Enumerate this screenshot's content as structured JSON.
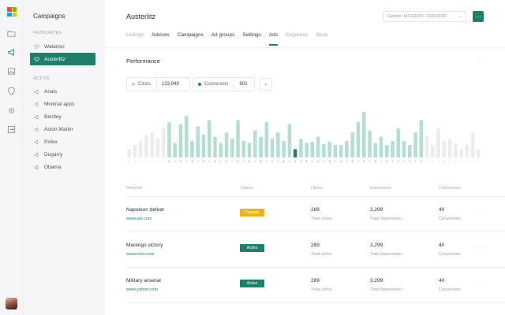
{
  "colors": {
    "accent": "#1f7f6b",
    "bar_light": "#b5ded3",
    "bar_faded": "#ececec",
    "bar_highlight": "#1f7f6b",
    "paused": "#f2b01e",
    "active": "#1f7f6b"
  },
  "sidebar": {
    "logo": "microsoft-logo",
    "icons": [
      "folder-icon",
      "megaphone-icon",
      "image-icon",
      "shield-icon",
      "gear-icon",
      "export-icon"
    ]
  },
  "campaigns_panel": {
    "title": "Campaigns",
    "favourites_label": "Favourites",
    "favourites": [
      {
        "label": "Waterloo",
        "icon": "heart-icon",
        "active": false
      },
      {
        "label": "Austerlitz",
        "icon": "heart-icon",
        "active": true
      }
    ],
    "active_label": "Active",
    "active_items": [
      {
        "label": "Anais",
        "icon": "megaphone-icon"
      },
      {
        "label": "Minimal apps",
        "icon": "megaphone-icon"
      },
      {
        "label": "Bentley",
        "icon": "megaphone-icon"
      },
      {
        "label": "Aston Martin",
        "icon": "megaphone-icon"
      },
      {
        "label": "Rolex",
        "icon": "megaphone-icon"
      },
      {
        "label": "Dugarry",
        "icon": "megaphone-icon"
      },
      {
        "label": "Obama",
        "icon": "megaphone-icon"
      }
    ]
  },
  "header": {
    "title": "Austerlitz",
    "date_range": "Custom: 14/12/2019 - 21/01/2020",
    "more_label": "···"
  },
  "tabs": [
    {
      "label": "Listings",
      "state": "muted"
    },
    {
      "label": "Advices",
      "state": "normal"
    },
    {
      "label": "Campaigns",
      "state": "normal"
    },
    {
      "label": "Ad groups",
      "state": "normal"
    },
    {
      "label": "Settings",
      "state": "normal"
    },
    {
      "label": "Ads",
      "state": "selected"
    },
    {
      "label": "Keywords",
      "state": "muted"
    },
    {
      "label": "More",
      "state": "muted"
    }
  ],
  "performance": {
    "title": "Performance",
    "metrics": [
      {
        "label": "Clicks",
        "value": "123,949",
        "dot_color": "#b5ded3"
      },
      {
        "label": "Conversion",
        "value": "902",
        "dot_color": "#1f7f6b"
      }
    ],
    "add_label": "+"
  },
  "chart_data": {
    "type": "bar",
    "values": [
      20,
      30,
      40,
      55,
      60,
      45,
      70,
      85,
      35,
      80,
      100,
      40,
      75,
      55,
      90,
      50,
      35,
      60,
      45,
      90,
      40,
      35,
      65,
      50,
      85,
      45,
      60,
      40,
      80,
      20,
      45,
      35,
      38,
      50,
      32,
      38,
      30,
      30,
      40,
      60,
      85,
      110,
      65,
      35,
      50,
      30,
      40,
      70,
      40,
      30,
      60,
      90,
      50,
      30,
      70,
      40,
      45,
      35,
      20,
      30,
      60,
      20
    ],
    "highlight_index": 29,
    "faded_ranges": [
      [
        0,
        6
      ],
      [
        52,
        61
      ]
    ],
    "grid": false,
    "legend": "none"
  },
  "table": {
    "headers": {
      "network": "Network",
      "status": "Status",
      "clicks": "Clicks",
      "impression": "Impression",
      "conversion": "Conversion"
    },
    "rows": [
      {
        "name": "Napoleon defeat",
        "url": "www.aol.com",
        "status": "Paused",
        "status_color": "#f2b01e",
        "clicks": "289",
        "clicks_sub": "Total clicks",
        "impression": "3,299",
        "impression_sub": "Total Impression",
        "conversion": "40",
        "conversion_sub": "Conversion"
      },
      {
        "name": "Marengo victory",
        "url": "www.msn.com",
        "status": "Active",
        "status_color": "#1f7f6b",
        "clicks": "289",
        "clicks_sub": "Total clicks",
        "impression": "3,299",
        "impression_sub": "Total Impression",
        "conversion": "40",
        "conversion_sub": "Conversion"
      },
      {
        "name": "Military arsenal",
        "url": "www.yahoo.com",
        "status": "Active",
        "status_color": "#1f7f6b",
        "clicks": "289",
        "clicks_sub": "Total clicks",
        "impression": "3,299",
        "impression_sub": "Total Impression",
        "conversion": "40",
        "conversion_sub": "Conversion"
      }
    ],
    "row_more_label": "···"
  }
}
